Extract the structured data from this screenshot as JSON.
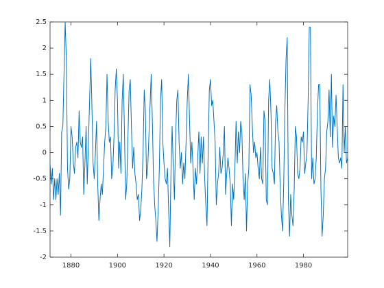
{
  "chart_data": {
    "type": "line",
    "color": "#0072bd",
    "xlim": [
      1871,
      1999
    ],
    "ylim": [
      -2,
      2.5
    ],
    "xticks": [
      1880,
      1900,
      1920,
      1940,
      1960,
      1980
    ],
    "yticks": [
      -2,
      -1.5,
      -1,
      -0.5,
      0,
      0.5,
      1,
      1.5,
      2,
      2.5
    ],
    "x": [
      1871,
      1871.5,
      1872,
      1872.5,
      1873,
      1873.5,
      1874,
      1874.5,
      1875,
      1875.5,
      1876,
      1876.5,
      1877,
      1877.5,
      1878,
      1878.5,
      1879,
      1879.5,
      1880,
      1880.5,
      1881,
      1881.5,
      1882,
      1882.5,
      1883,
      1883.5,
      1884,
      1884.5,
      1885,
      1885.5,
      1886,
      1886.5,
      1887,
      1887.5,
      1888,
      1888.5,
      1889,
      1889.5,
      1890,
      1890.5,
      1891,
      1891.5,
      1892,
      1892.5,
      1893,
      1893.5,
      1894,
      1894.5,
      1895,
      1895.5,
      1896,
      1896.5,
      1897,
      1897.5,
      1898,
      1898.5,
      1899,
      1899.5,
      1900,
      1900.5,
      1901,
      1901.5,
      1902,
      1902.5,
      1903,
      1903.5,
      1904,
      1904.5,
      1905,
      1905.5,
      1906,
      1906.5,
      1907,
      1907.5,
      1908,
      1908.5,
      1909,
      1909.5,
      1910,
      1910.5,
      1911,
      1911.5,
      1912,
      1912.5,
      1913,
      1913.5,
      1914,
      1914.5,
      1915,
      1915.5,
      1916,
      1916.5,
      1917,
      1917.5,
      1918,
      1918.5,
      1919,
      1919.5,
      1920,
      1920.5,
      1921,
      1921.5,
      1922,
      1922.5,
      1923,
      1923.5,
      1924,
      1924.5,
      1925,
      1925.5,
      1926,
      1926.5,
      1927,
      1927.5,
      1928,
      1928.5,
      1929,
      1929.5,
      1930,
      1930.5,
      1931,
      1931.5,
      1932,
      1932.5,
      1933,
      1933.5,
      1934,
      1934.5,
      1935,
      1935.5,
      1936,
      1936.5,
      1937,
      1937.5,
      1938,
      1938.5,
      1939,
      1939.5,
      1940,
      1940.5,
      1941,
      1941.5,
      1942,
      1942.5,
      1943,
      1943.5,
      1944,
      1944.5,
      1945,
      1945.5,
      1946,
      1946.5,
      1947,
      1947.5,
      1948,
      1948.5,
      1949,
      1949.5,
      1950,
      1950.5,
      1951,
      1951.5,
      1952,
      1952.5,
      1953,
      1953.5,
      1954,
      1954.5,
      1955,
      1955.5,
      1956,
      1956.5,
      1957,
      1957.5,
      1958,
      1958.5,
      1959,
      1959.5,
      1960,
      1960.5,
      1961,
      1961.5,
      1962,
      1962.5,
      1963,
      1963.5,
      1964,
      1964.5,
      1965,
      1965.5,
      1966,
      1966.5,
      1967,
      1967.5,
      1968,
      1968.5,
      1969,
      1969.5,
      1970,
      1970.5,
      1971,
      1971.5,
      1972,
      1972.5,
      1973,
      1973.5,
      1974,
      1974.5,
      1975,
      1975.5,
      1976,
      1976.5,
      1977,
      1977.5,
      1978,
      1978.5,
      1979,
      1979.5,
      1980,
      1980.5,
      1981,
      1981.5,
      1982,
      1982.5,
      1983,
      1983.5,
      1984,
      1984.5,
      1985,
      1985.5,
      1986,
      1986.5,
      1987,
      1987.5,
      1988,
      1988.5,
      1989,
      1989.5,
      1990,
      1990.5,
      1991,
      1991.5,
      1992,
      1992.5,
      1993,
      1993.5,
      1994,
      1994.5,
      1995,
      1995.5,
      1996,
      1996.5,
      1997,
      1997.5,
      1998,
      1998.5,
      1999
    ],
    "values": [
      -0.2,
      -0.6,
      -0.3,
      -0.9,
      -0.5,
      -0.9,
      -0.5,
      -0.8,
      -0.4,
      -1.2,
      0.4,
      0.5,
      1.5,
      2.5,
      1.8,
      -0.3,
      -0.7,
      -0.5,
      0.5,
      0.3,
      -0.2,
      -0.4,
      0.1,
      0.2,
      -0.1,
      0.8,
      0.2,
      0.1,
      0.3,
      -0.8,
      -0.2,
      0.5,
      -0.6,
      0.2,
      1.0,
      1.8,
      0.9,
      -0.2,
      -0.5,
      0.0,
      0.6,
      -0.6,
      -1.3,
      -0.9,
      -0.6,
      -0.8,
      -0.3,
      0.2,
      0.5,
      1.5,
      0.6,
      0.2,
      0.3,
      -0.5,
      -0.3,
      0.3,
      1.2,
      1.6,
      1.0,
      -0.3,
      0.2,
      -0.4,
      1.0,
      1.5,
      0.4,
      -0.9,
      -0.6,
      0.3,
      1.2,
      1.4,
      0.5,
      -0.3,
      0.1,
      -0.4,
      -0.6,
      -0.9,
      -0.8,
      -1.3,
      -1.1,
      -0.7,
      0.0,
      1.2,
      0.8,
      -0.5,
      -0.3,
      0.3,
      0.9,
      1.5,
      0.6,
      -0.5,
      -1.0,
      -1.3,
      -1.7,
      -1.1,
      -0.3,
      1.0,
      1.4,
      0.2,
      -0.2,
      -0.5,
      -0.6,
      -0.3,
      -1.1,
      -1.8,
      -0.4,
      0.5,
      -0.3,
      -0.9,
      0.3,
      1.0,
      1.2,
      0.2,
      -0.3,
      0.0,
      -0.6,
      -0.2,
      -0.5,
      0.2,
      1.0,
      1.5,
      0.6,
      -0.2,
      0.2,
      -0.3,
      -0.9,
      -0.3,
      -0.6,
      -0.1,
      0.4,
      -0.4,
      0.3,
      -0.2,
      0.3,
      -0.5,
      -1.0,
      -1.4,
      0.0,
      1.2,
      1.4,
      0.9,
      1.0,
      0.6,
      0.2,
      -1.0,
      -0.6,
      -0.4,
      0.1,
      -0.4,
      -0.3,
      0.0,
      0.5,
      -0.8,
      -0.4,
      -0.1,
      -0.3,
      -0.6,
      -1.4,
      -0.6,
      -0.9,
      -0.3,
      0.6,
      -0.2,
      0.4,
      0.0,
      0.6,
      0.4,
      -0.5,
      -0.9,
      -0.4,
      -1.5,
      -0.6,
      -0.3,
      1.3,
      1.1,
      0.5,
      0.0,
      0.2,
      -0.1,
      0.0,
      -0.3,
      -0.5,
      0.1,
      -0.5,
      -0.6,
      0.8,
      0.6,
      -0.9,
      -1.0,
      1.0,
      1.4,
      0.8,
      -0.3,
      -0.4,
      -0.6,
      0.6,
      0.9,
      0.4,
      0.2,
      -0.7,
      -1.2,
      -1.5,
      -0.6,
      0.8,
      1.8,
      2.2,
      -0.9,
      -1.6,
      -0.8,
      -1.2,
      -1.4,
      -0.7,
      0.5,
      0.3,
      -0.4,
      -0.5,
      -0.3,
      0.3,
      0.2,
      0.4,
      -0.4,
      -0.2,
      0.0,
      1.0,
      2.4,
      2.4,
      -0.5,
      -0.1,
      -0.6,
      -0.5,
      -0.1,
      0.8,
      1.3,
      1.3,
      -0.7,
      -1.6,
      -1.2,
      -0.5,
      -0.3,
      0.4,
      0.6,
      1.2,
      0.3,
      1.5,
      0.1,
      0.7,
      0.5,
      1.1,
      0.5,
      -0.1,
      -0.2,
      -0.1,
      -0.3,
      1.3,
      0.0,
      0.5,
      -0.2,
      -0.1
    ]
  }
}
